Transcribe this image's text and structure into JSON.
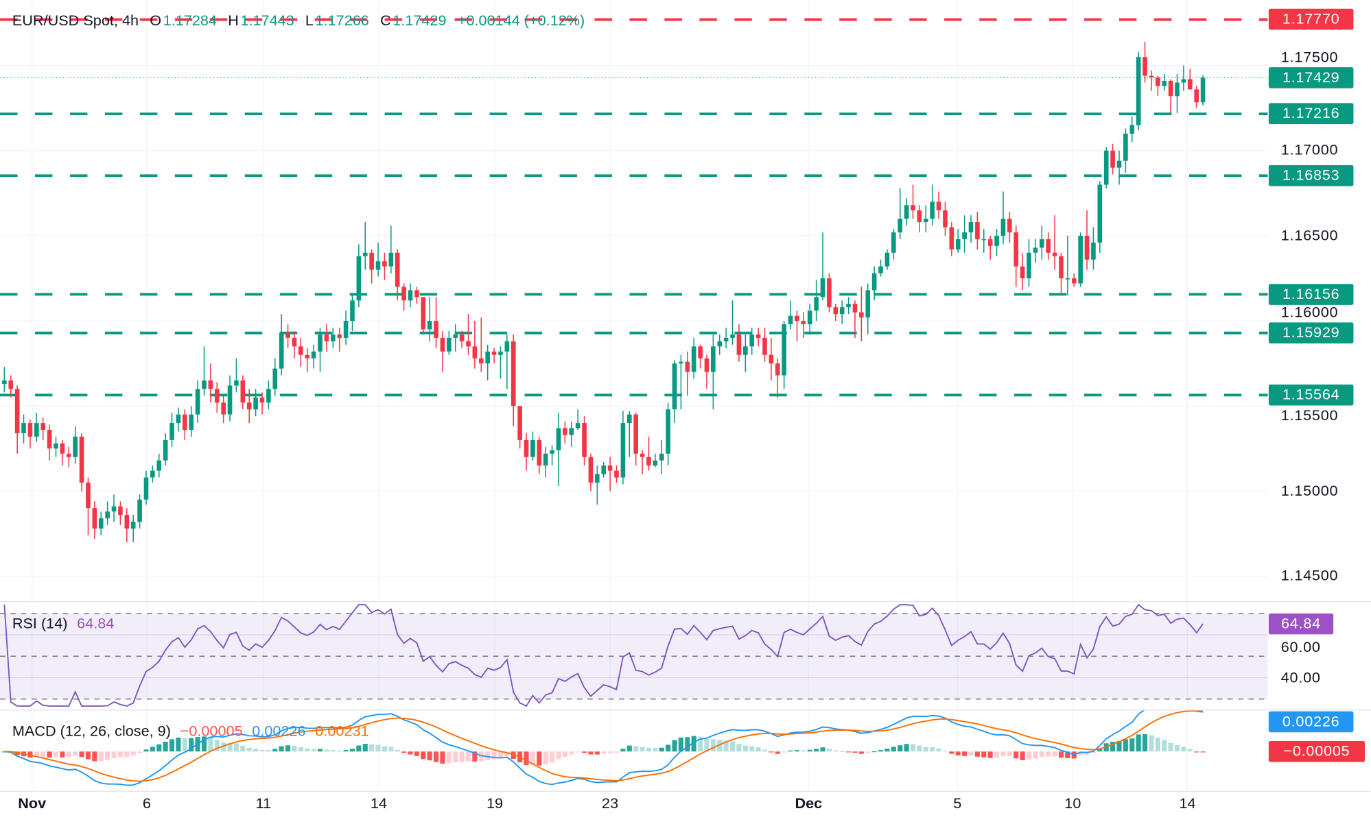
{
  "legend": {
    "symbol": "EUR/USD Spot, 4h",
    "o_label": "O",
    "o": "1.17284",
    "h_label": "H",
    "h": "1.17443",
    "l_label": "L",
    "l": "1.17266",
    "c_label": "C",
    "c": "1.17429",
    "change": "+0.00144 (+0.12%)"
  },
  "colors": {
    "up": "#089981",
    "down": "#f23645",
    "rsi": "#7e57c2",
    "rsi_label": "#9c52c6",
    "macd": "#2196f3",
    "signal": "#ff6d00",
    "hist_up_strong": "#26a69a",
    "hist_up_weak": "#b2dfdb",
    "hist_down_strong": "#ff5252",
    "hist_down_weak": "#ffcdd2",
    "grid": "#f0f3fa"
  },
  "price_axis": {
    "ticks": [
      "1.17500",
      "1.17000",
      "1.16500",
      "1.16000",
      "1.15500",
      "1.15000",
      "1.14500"
    ],
    "last_price": "1.17429"
  },
  "levels": [
    {
      "value": "1.17770",
      "color": "#f23645"
    },
    {
      "value": "1.17216",
      "color": "#089981"
    },
    {
      "value": "1.16853",
      "color": "#089981"
    },
    {
      "value": "1.16156",
      "color": "#089981"
    },
    {
      "value": "1.15929",
      "color": "#089981"
    },
    {
      "value": "1.15564",
      "color": "#089981"
    }
  ],
  "x_axis": [
    {
      "label": "Nov",
      "candle_index": 4.3,
      "bold": true
    },
    {
      "label": "6",
      "candle_index": 22.1
    },
    {
      "label": "11",
      "candle_index": 40.2
    },
    {
      "label": "14",
      "candle_index": 58.1
    },
    {
      "label": "19",
      "candle_index": 76.1
    },
    {
      "label": "23",
      "candle_index": 94.0
    },
    {
      "label": "Dec",
      "candle_index": 124.8,
      "bold": true
    },
    {
      "label": "5",
      "candle_index": 147.9
    },
    {
      "label": "10",
      "candle_index": 165.8
    },
    {
      "label": "14",
      "candle_index": 183.6
    }
  ],
  "rsi": {
    "title": "RSI (14)",
    "value": "64.84",
    "ticks": [
      "60.00",
      "40.00"
    ],
    "upper": 70,
    "middle": 50,
    "lower": 30
  },
  "macd": {
    "title": "MACD (12, 26, close, 9)",
    "histogram": "−0.00005",
    "macd": "0.00226",
    "signal": "0.00231",
    "label_macd": "0.00226",
    "label_hist": "−0.00005"
  },
  "chart_data": {
    "type": "candlestick",
    "title": "EUR/USD Spot, 4h",
    "ylim": [
      1.1435,
      1.1789
    ],
    "grid": true,
    "first_open": 1.1563,
    "open_rule": "each open equals previous close",
    "close": [
      1.1565,
      1.156,
      1.1534,
      1.154,
      1.1532,
      1.154,
      1.1536,
      1.1525,
      1.1528,
      1.1522,
      1.152,
      1.1532,
      1.1505,
      1.149,
      1.1478,
      1.1484,
      1.1488,
      1.1491,
      1.1486,
      1.1478,
      1.1482,
      1.1495,
      1.1508,
      1.1512,
      1.1518,
      1.153,
      1.154,
      1.1545,
      1.1536,
      1.1545,
      1.156,
      1.1565,
      1.156,
      1.1552,
      1.1545,
      1.1562,
      1.1565,
      1.1552,
      1.1548,
      1.1555,
      1.1552,
      1.156,
      1.1572,
      1.1593,
      1.159,
      1.1585,
      1.158,
      1.1578,
      1.1582,
      1.1592,
      1.1588,
      1.1592,
      1.159,
      1.16,
      1.1612,
      1.1638,
      1.164,
      1.163,
      1.1635,
      1.1632,
      1.164,
      1.162,
      1.1612,
      1.1618,
      1.1614,
      1.1595,
      1.16,
      1.159,
      1.1582,
      1.159,
      1.1592,
      1.1588,
      1.1585,
      1.1578,
      1.1575,
      1.1582,
      1.158,
      1.1582,
      1.1588,
      1.155,
      1.153,
      1.152,
      1.153,
      1.1515,
      1.1522,
      1.1524,
      1.1537,
      1.1533,
      1.1537,
      1.154,
      1.152,
      1.1505,
      1.151,
      1.1515,
      1.1512,
      1.1508,
      1.154,
      1.1545,
      1.1522,
      1.152,
      1.1515,
      1.1518,
      1.1522,
      1.1548,
      1.1575,
      1.1576,
      1.157,
      1.1585,
      1.1578,
      1.157,
      1.1585,
      1.1588,
      1.159,
      1.1592,
      1.158,
      1.1585,
      1.1592,
      1.159,
      1.158,
      1.1575,
      1.1568,
      1.1598,
      1.1603,
      1.16,
      1.1598,
      1.1606,
      1.1614,
      1.1625,
      1.1608,
      1.1604,
      1.1608,
      1.161,
      1.1605,
      1.1602,
      1.1618,
      1.1628,
      1.1632,
      1.164,
      1.1652,
      1.166,
      1.1668,
      1.1665,
      1.1658,
      1.166,
      1.167,
      1.1665,
      1.1655,
      1.1642,
      1.1648,
      1.1652,
      1.1658,
      1.1648,
      1.1648,
      1.1644,
      1.165,
      1.166,
      1.1652,
      1.1632,
      1.1625,
      1.164,
      1.1643,
      1.1648,
      1.164,
      1.1638,
      1.1625,
      1.1625,
      1.1622,
      1.165,
      1.1636,
      1.1646,
      1.168,
      1.17,
      1.169,
      1.1694,
      1.171,
      1.1715,
      1.1755,
      1.1744,
      1.1743,
      1.1738,
      1.1741,
      1.1732,
      1.174,
      1.1742,
      1.1736,
      1.17284,
      1.17429
    ],
    "high": [
      1.1573,
      1.1568,
      1.1562,
      1.1545,
      1.1542,
      1.1546,
      1.1543,
      1.1539,
      1.1532,
      1.153,
      1.1526,
      1.1538,
      1.1534,
      1.1508,
      1.1494,
      1.1488,
      1.1494,
      1.1498,
      1.1494,
      1.149,
      1.1486,
      1.1498,
      1.1512,
      1.1515,
      1.1522,
      1.1534,
      1.1546,
      1.1549,
      1.1548,
      1.155,
      1.1565,
      1.1585,
      1.1575,
      1.1564,
      1.1556,
      1.1568,
      1.1578,
      1.1568,
      1.156,
      1.156,
      1.1558,
      1.1565,
      1.1578,
      1.1604,
      1.1598,
      1.1594,
      1.159,
      1.1584,
      1.1586,
      1.1596,
      1.1598,
      1.1596,
      1.1596,
      1.1606,
      1.1616,
      1.1645,
      1.1658,
      1.1642,
      1.1646,
      1.164,
      1.1656,
      1.1642,
      1.1622,
      1.1622,
      1.162,
      1.1614,
      1.1614,
      1.1614,
      1.1594,
      1.1594,
      1.1598,
      1.1594,
      1.1604,
      1.16,
      1.1602,
      1.1586,
      1.1584,
      1.1585,
      1.1592,
      1.1592,
      1.155,
      1.1534,
      1.1535,
      1.1532,
      1.1526,
      1.1527,
      1.1546,
      1.1541,
      1.1541,
      1.1548,
      1.1544,
      1.1522,
      1.1515,
      1.1517,
      1.152,
      1.1515,
      1.1547,
      1.1547,
      1.1546,
      1.1524,
      1.1532,
      1.1522,
      1.153,
      1.1552,
      1.1577,
      1.158,
      1.1582,
      1.159,
      1.1586,
      1.158,
      1.1592,
      1.1592,
      1.1596,
      1.1612,
      1.1598,
      1.1592,
      1.1596,
      1.1596,
      1.1596,
      1.159,
      1.1578,
      1.16,
      1.1612,
      1.1606,
      1.1605,
      1.161,
      1.1624,
      1.1652,
      1.1628,
      1.161,
      1.1612,
      1.1614,
      1.1612,
      1.162,
      1.1622,
      1.1632,
      1.1636,
      1.1642,
      1.1654,
      1.1678,
      1.1672,
      1.168,
      1.1668,
      1.1668,
      1.168,
      1.1676,
      1.167,
      1.1658,
      1.1654,
      1.1662,
      1.1662,
      1.1664,
      1.1654,
      1.165,
      1.1654,
      1.1676,
      1.1664,
      1.1656,
      1.164,
      1.1648,
      1.1648,
      1.1656,
      1.1652,
      1.1662,
      1.164,
      1.165,
      1.1628,
      1.1652,
      1.1665,
      1.1655,
      1.1682,
      1.1702,
      1.1704,
      1.17,
      1.1713,
      1.172,
      1.1758,
      1.1764,
      1.1747,
      1.1744,
      1.1745,
      1.1742,
      1.1745,
      1.175,
      1.1748,
      1.1738,
      1.17443
    ],
    "low": [
      1.1558,
      1.1555,
      1.1522,
      1.1528,
      1.1525,
      1.1529,
      1.153,
      1.1518,
      1.152,
      1.1515,
      1.1514,
      1.1516,
      1.15,
      1.1474,
      1.1472,
      1.1474,
      1.148,
      1.1482,
      1.148,
      1.147,
      1.147,
      1.1478,
      1.1492,
      1.1505,
      1.1508,
      1.1515,
      1.1526,
      1.1535,
      1.153,
      1.1532,
      1.154,
      1.1556,
      1.1552,
      1.1546,
      1.154,
      1.1541,
      1.1558,
      1.1548,
      1.154,
      1.1544,
      1.1545,
      1.1548,
      1.1556,
      1.1568,
      1.1584,
      1.1578,
      1.1573,
      1.157,
      1.1572,
      1.157,
      1.1582,
      1.1584,
      1.1582,
      1.1586,
      1.1594,
      1.1608,
      1.163,
      1.1622,
      1.1626,
      1.1624,
      1.1628,
      1.1612,
      1.1606,
      1.1608,
      1.161,
      1.1592,
      1.1588,
      1.1584,
      1.157,
      1.158,
      1.1582,
      1.1584,
      1.158,
      1.1572,
      1.157,
      1.1565,
      1.1575,
      1.1566,
      1.156,
      1.1538,
      1.1525,
      1.1512,
      1.1518,
      1.151,
      1.1508,
      1.1515,
      1.1503,
      1.1528,
      1.1526,
      1.1536,
      1.1515,
      1.15,
      1.1492,
      1.1508,
      1.15,
      1.1505,
      1.1504,
      1.152,
      1.1515,
      1.151,
      1.1512,
      1.1514,
      1.151,
      1.1515,
      1.154,
      1.1548,
      1.1556,
      1.1566,
      1.1572,
      1.156,
      1.1548,
      1.158,
      1.1584,
      1.1586,
      1.1576,
      1.157,
      1.158,
      1.1585,
      1.1576,
      1.1565,
      1.1555,
      1.156,
      1.1595,
      1.1588,
      1.159,
      1.1592,
      1.16,
      1.1612,
      1.1605,
      1.16,
      1.1598,
      1.1604,
      1.159,
      1.1588,
      1.1592,
      1.1612,
      1.1626,
      1.163,
      1.1636,
      1.1648,
      1.1656,
      1.166,
      1.1652,
      1.1652,
      1.1656,
      1.166,
      1.165,
      1.1638,
      1.164,
      1.164,
      1.1646,
      1.1642,
      1.164,
      1.1636,
      1.1638,
      1.1645,
      1.1646,
      1.162,
      1.1618,
      1.162,
      1.1634,
      1.1636,
      1.1636,
      1.163,
      1.1615,
      1.1615,
      1.162,
      1.162,
      1.163,
      1.163,
      1.164,
      1.1678,
      1.1686,
      1.168,
      1.1687,
      1.1705,
      1.1712,
      1.174,
      1.1735,
      1.1732,
      1.1735,
      1.1722,
      1.1722,
      1.1735,
      1.1736,
      1.1725,
      1.17266
    ]
  }
}
